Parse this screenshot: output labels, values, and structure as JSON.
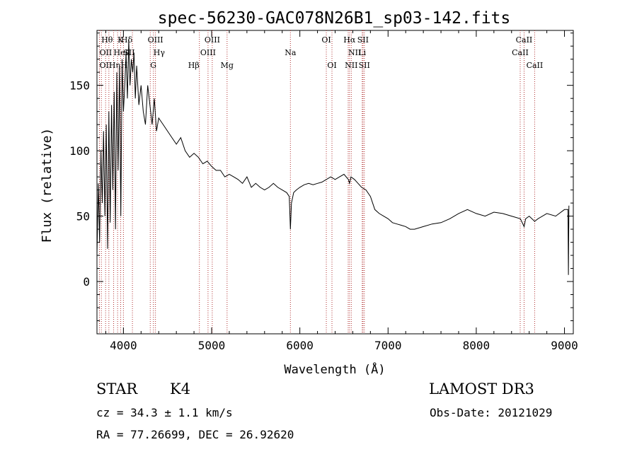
{
  "chart_data": {
    "type": "line",
    "title": "spec-56230-GAC078N26B1_sp03-142.fits",
    "xlabel": "Wavelength (Å)",
    "ylabel": "Flux (relative)",
    "xlim": [
      3700,
      9100
    ],
    "ylim": [
      -40,
      192
    ],
    "xticks": [
      4000,
      5000,
      6000,
      7000,
      8000,
      9000
    ],
    "xtick_labels": [
      "4000",
      "5000",
      "6000",
      "7000",
      "8000",
      "9000"
    ],
    "yticks": [
      0,
      50,
      100,
      150
    ],
    "ytick_labels": [
      "0",
      "50",
      "100",
      "150"
    ],
    "grid": false,
    "legend": "none",
    "line_color": "#000000",
    "series": [
      {
        "x": [
          3700,
          3715,
          3730,
          3745,
          3760,
          3775,
          3790,
          3805,
          3820,
          3835,
          3850,
          3865,
          3880,
          3895,
          3910,
          3925,
          3940,
          3955,
          3970,
          3985,
          4000,
          4015,
          4030,
          4045,
          4060,
          4075,
          4090,
          4105,
          4120,
          4135,
          4150,
          4175,
          4200,
          4225,
          4250,
          4275,
          4300,
          4325,
          4350,
          4375,
          4400,
          4450,
          4500,
          4550,
          4600,
          4650,
          4700,
          4750,
          4800,
          4850,
          4900,
          4950,
          5000,
          5050,
          5100,
          5150,
          5200,
          5250,
          5300,
          5350,
          5400,
          5450,
          5500,
          5550,
          5600,
          5650,
          5700,
          5750,
          5800,
          5850,
          5880,
          5893,
          5905,
          5930,
          5960,
          6000,
          6050,
          6100,
          6150,
          6200,
          6250,
          6300,
          6350,
          6400,
          6450,
          6500,
          6550,
          6563,
          6580,
          6620,
          6660,
          6700,
          6750,
          6800,
          6850,
          6900,
          6950,
          7000,
          7050,
          7100,
          7150,
          7200,
          7250,
          7300,
          7400,
          7500,
          7600,
          7700,
          7800,
          7900,
          8000,
          8100,
          8200,
          8300,
          8400,
          8500,
          8542,
          8560,
          8600,
          8662,
          8700,
          8800,
          8900,
          9000,
          9040,
          9045,
          9050
        ],
        "y": [
          20,
          75,
          30,
          100,
          60,
          115,
          50,
          120,
          25,
          130,
          45,
          135,
          70,
          145,
          40,
          160,
          85,
          165,
          50,
          170,
          130,
          150,
          175,
          140,
          185,
          150,
          170,
          160,
          175,
          140,
          165,
          135,
          150,
          130,
          120,
          150,
          135,
          120,
          140,
          115,
          125,
          120,
          115,
          110,
          105,
          110,
          100,
          95,
          98,
          95,
          90,
          92,
          88,
          85,
          85,
          80,
          82,
          80,
          78,
          75,
          80,
          72,
          75,
          72,
          70,
          72,
          75,
          72,
          70,
          68,
          65,
          40,
          60,
          68,
          70,
          72,
          74,
          75,
          74,
          75,
          76,
          78,
          80,
          78,
          80,
          82,
          78,
          75,
          80,
          78,
          75,
          72,
          70,
          65,
          55,
          52,
          50,
          48,
          45,
          44,
          43,
          42,
          40,
          40,
          42,
          44,
          45,
          48,
          52,
          55,
          52,
          50,
          53,
          52,
          50,
          48,
          42,
          48,
          50,
          46,
          48,
          52,
          50,
          55,
          55,
          5,
          58
        ]
      }
    ],
    "lines": [
      {
        "wl": 3750,
        "label": "Hθ",
        "row": 0,
        "anchor": "start"
      },
      {
        "wl": 3728,
        "label": "OII",
        "row": 1,
        "anchor": "start"
      },
      {
        "wl": 3728,
        "label": "OII",
        "row": 2,
        "anchor": "start"
      },
      {
        "wl": 3798,
        "label": "",
        "row": -1,
        "anchor": "start"
      },
      {
        "wl": 3835,
        "label": "Hη",
        "row": 2,
        "anchor": "start"
      },
      {
        "wl": 3889,
        "label": "HeI",
        "row": 1,
        "anchor": "start"
      },
      {
        "wl": 3934,
        "label": "K",
        "row": 0,
        "anchor": "start"
      },
      {
        "wl": 3969,
        "label": "H",
        "row": 2,
        "anchor": "start"
      },
      {
        "wl": 4000,
        "label": "SII",
        "row": 1,
        "anchor": "start"
      },
      {
        "wl": 4102,
        "label": "Hδ",
        "row": 0,
        "anchor": "end"
      },
      {
        "wl": 4304,
        "label": "G",
        "row": 2,
        "anchor": "start"
      },
      {
        "wl": 4340,
        "label": "Hγ",
        "row": 1,
        "anchor": "start"
      },
      {
        "wl": 4363,
        "label": "OIII",
        "row": 0,
        "anchor": "middle"
      },
      {
        "wl": 4861,
        "label": "Hβ",
        "row": 2,
        "anchor": "end"
      },
      {
        "wl": 4959,
        "label": "OIII",
        "row": 1,
        "anchor": "middle"
      },
      {
        "wl": 5007,
        "label": "OIII",
        "row": 0,
        "anchor": "middle"
      },
      {
        "wl": 5175,
        "label": "Mg",
        "row": 2,
        "anchor": "middle"
      },
      {
        "wl": 5893,
        "label": "Na",
        "row": 1,
        "anchor": "middle"
      },
      {
        "wl": 6300,
        "label": "OI",
        "row": 0,
        "anchor": "middle"
      },
      {
        "wl": 6364,
        "label": "OI",
        "row": 2,
        "anchor": "middle"
      },
      {
        "wl": 6548,
        "label": "NII",
        "row": 1,
        "anchor": "start"
      },
      {
        "wl": 6563,
        "label": "Hα",
        "row": 0,
        "anchor": "middle"
      },
      {
        "wl": 6583,
        "label": "NII",
        "row": 2,
        "anchor": "middle"
      },
      {
        "wl": 6707,
        "label": "Li",
        "row": 1,
        "anchor": "middle"
      },
      {
        "wl": 6716,
        "label": "SII",
        "row": 0,
        "anchor": "middle"
      },
      {
        "wl": 6731,
        "label": "SII",
        "row": 2,
        "anchor": "middle"
      },
      {
        "wl": 8498,
        "label": "CaII",
        "row": 1,
        "anchor": "middle"
      },
      {
        "wl": 8542,
        "label": "CaII",
        "row": 0,
        "anchor": "middle"
      },
      {
        "wl": 8662,
        "label": "CaII",
        "row": 2,
        "anchor": "middle"
      }
    ],
    "line_marker_color": "#b03030"
  },
  "info": {
    "class_label": "STAR",
    "subclass": "K4",
    "survey": "LAMOST DR3",
    "cz": "cz = 34.3 ± 1.1 km/s",
    "obs_date": "Obs-Date: 20121029",
    "coords": "RA =  77.26699, DEC =  26.92620"
  }
}
